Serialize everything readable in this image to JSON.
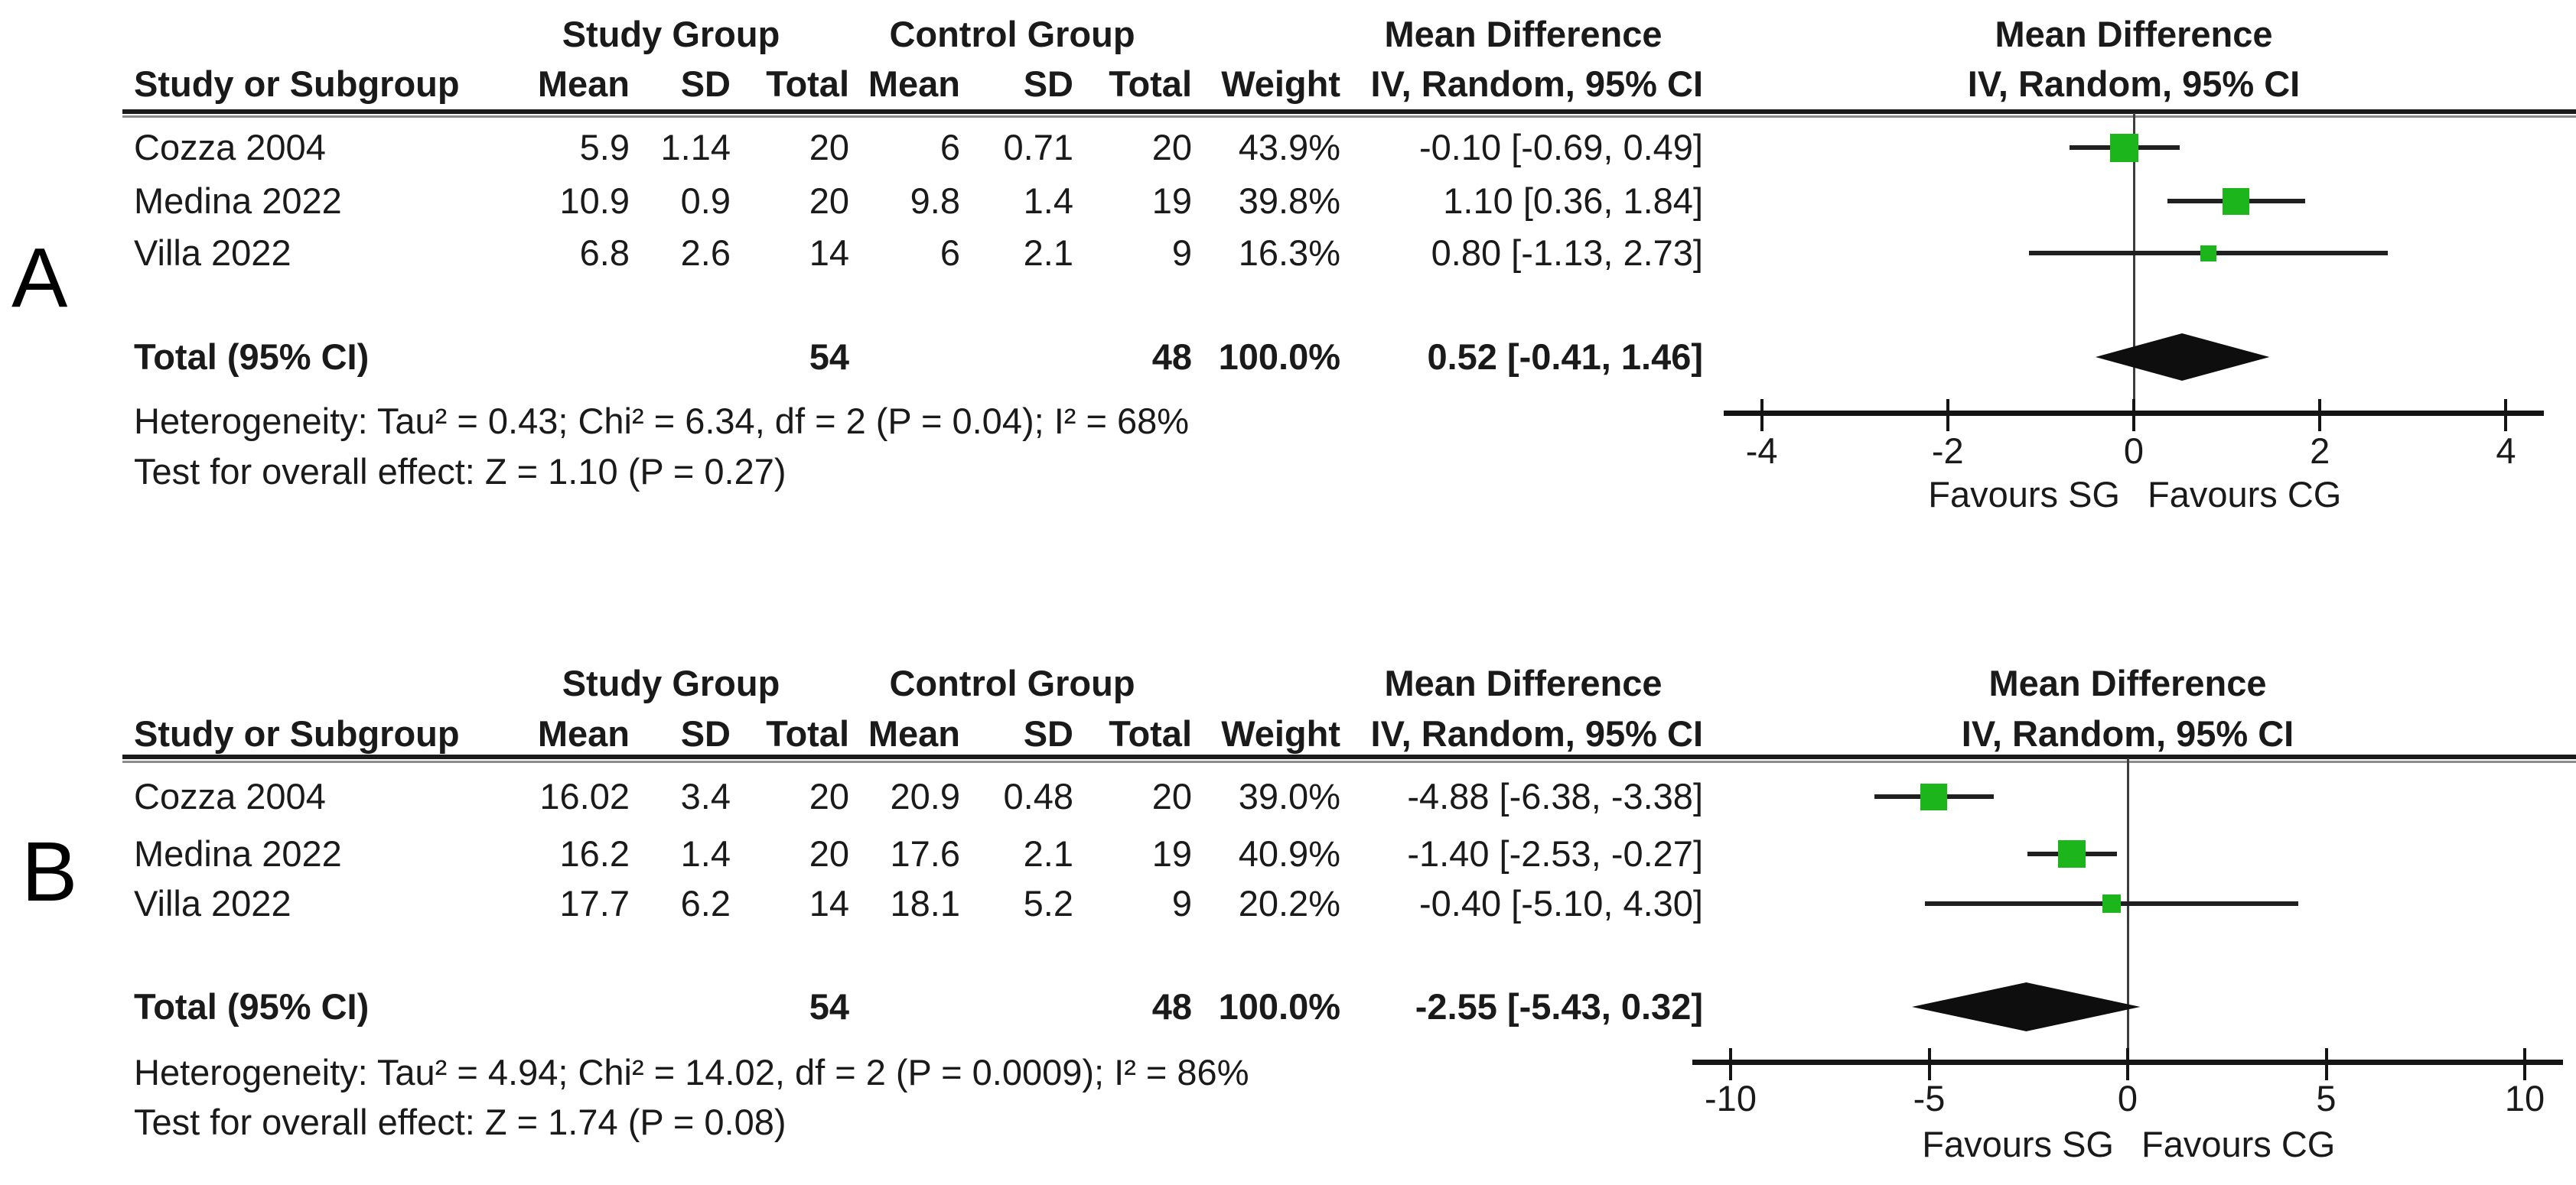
{
  "figure": {
    "background": "#ffffff",
    "marker_color": "#1cb51c",
    "diamond_color": "#0e0e0e"
  },
  "chart_data": [
    {
      "type": "scatter",
      "subtype": "forest-plot",
      "panel_label": "A",
      "headers": {
        "study_group": "Study Group",
        "control_group": "Control Group",
        "mean_difference": "Mean Difference",
        "study_or_subgroup": "Study or Subgroup",
        "mean": "Mean",
        "sd": "SD",
        "total": "Total",
        "weight": "Weight",
        "iv_random": "IV, Random, 95% CI"
      },
      "studies": [
        {
          "name": "Cozza 2004",
          "sg_mean": "5.9",
          "sg_sd": "1.14",
          "sg_total": "20",
          "cg_mean": "6",
          "cg_sd": "0.71",
          "cg_total": "20",
          "weight": "43.9%",
          "weight_pct": 43.9,
          "md_label": "-0.10 [-0.69, 0.49]",
          "md": -0.1,
          "ci_low": -0.69,
          "ci_high": 0.49
        },
        {
          "name": "Medina 2022",
          "sg_mean": "10.9",
          "sg_sd": "0.9",
          "sg_total": "20",
          "cg_mean": "9.8",
          "cg_sd": "1.4",
          "cg_total": "19",
          "weight": "39.8%",
          "weight_pct": 39.8,
          "md_label": "1.10 [0.36, 1.84]",
          "md": 1.1,
          "ci_low": 0.36,
          "ci_high": 1.84
        },
        {
          "name": "Villa 2022",
          "sg_mean": "6.8",
          "sg_sd": "2.6",
          "sg_total": "14",
          "cg_mean": "6",
          "cg_sd": "2.1",
          "cg_total": "9",
          "weight": "16.3%",
          "weight_pct": 16.3,
          "md_label": "0.80 [-1.13, 2.73]",
          "md": 0.8,
          "ci_low": -1.13,
          "ci_high": 2.73
        }
      ],
      "total": {
        "label": "Total (95% CI)",
        "sg_total": "54",
        "cg_total": "48",
        "weight": "100.0%",
        "md_label": "0.52 [-0.41, 1.46]",
        "md": 0.52,
        "ci_low": -0.41,
        "ci_high": 1.46
      },
      "heterogeneity": "Heterogeneity: Tau² = 0.43; Chi² = 6.34, df = 2 (P = 0.04); I² = 68%",
      "overall_effect": "Test for overall effect: Z = 1.10 (P = 0.27)",
      "axis": {
        "xmin": -4,
        "xmax": 4,
        "ticks": [
          -4,
          -2,
          0,
          2,
          4
        ],
        "tick_labels": [
          "-4",
          "-2",
          "0",
          "2",
          "4"
        ],
        "favours_left": "Favours SG",
        "favours_right": "Favours CG"
      }
    },
    {
      "type": "scatter",
      "subtype": "forest-plot",
      "panel_label": "B",
      "headers": {
        "study_group": "Study Group",
        "control_group": "Control Group",
        "mean_difference": "Mean Difference",
        "study_or_subgroup": "Study or Subgroup",
        "mean": "Mean",
        "sd": "SD",
        "total": "Total",
        "weight": "Weight",
        "iv_random": "IV, Random, 95% CI"
      },
      "studies": [
        {
          "name": "Cozza 2004",
          "sg_mean": "16.02",
          "sg_sd": "3.4",
          "sg_total": "20",
          "cg_mean": "20.9",
          "cg_sd": "0.48",
          "cg_total": "20",
          "weight": "39.0%",
          "weight_pct": 39.0,
          "md_label": "-4.88 [-6.38, -3.38]",
          "md": -4.88,
          "ci_low": -6.38,
          "ci_high": -3.38
        },
        {
          "name": "Medina 2022",
          "sg_mean": "16.2",
          "sg_sd": "1.4",
          "sg_total": "20",
          "cg_mean": "17.6",
          "cg_sd": "2.1",
          "cg_total": "19",
          "weight": "40.9%",
          "weight_pct": 40.9,
          "md_label": "-1.40 [-2.53, -0.27]",
          "md": -1.4,
          "ci_low": -2.53,
          "ci_high": -0.27
        },
        {
          "name": "Villa 2022",
          "sg_mean": "17.7",
          "sg_sd": "6.2",
          "sg_total": "14",
          "cg_mean": "18.1",
          "cg_sd": "5.2",
          "cg_total": "9",
          "weight": "20.2%",
          "weight_pct": 20.2,
          "md_label": "-0.40 [-5.10, 4.30]",
          "md": -0.4,
          "ci_low": -5.1,
          "ci_high": 4.3
        }
      ],
      "total": {
        "label": "Total (95% CI)",
        "sg_total": "54",
        "cg_total": "48",
        "weight": "100.0%",
        "md_label": "-2.55 [-5.43, 0.32]",
        "md": -2.55,
        "ci_low": -5.43,
        "ci_high": 0.32
      },
      "heterogeneity": "Heterogeneity: Tau² = 4.94; Chi² = 14.02, df = 2 (P = 0.0009); I² = 86%",
      "overall_effect": "Test for overall effect: Z = 1.74 (P = 0.08)",
      "axis": {
        "xmin": -10,
        "xmax": 10,
        "ticks": [
          -10,
          -5,
          0,
          5,
          10
        ],
        "tick_labels": [
          "-10",
          "-5",
          "0",
          "5",
          "10"
        ],
        "favours_left": "Favours SG",
        "favours_right": "Favours CG"
      }
    }
  ]
}
